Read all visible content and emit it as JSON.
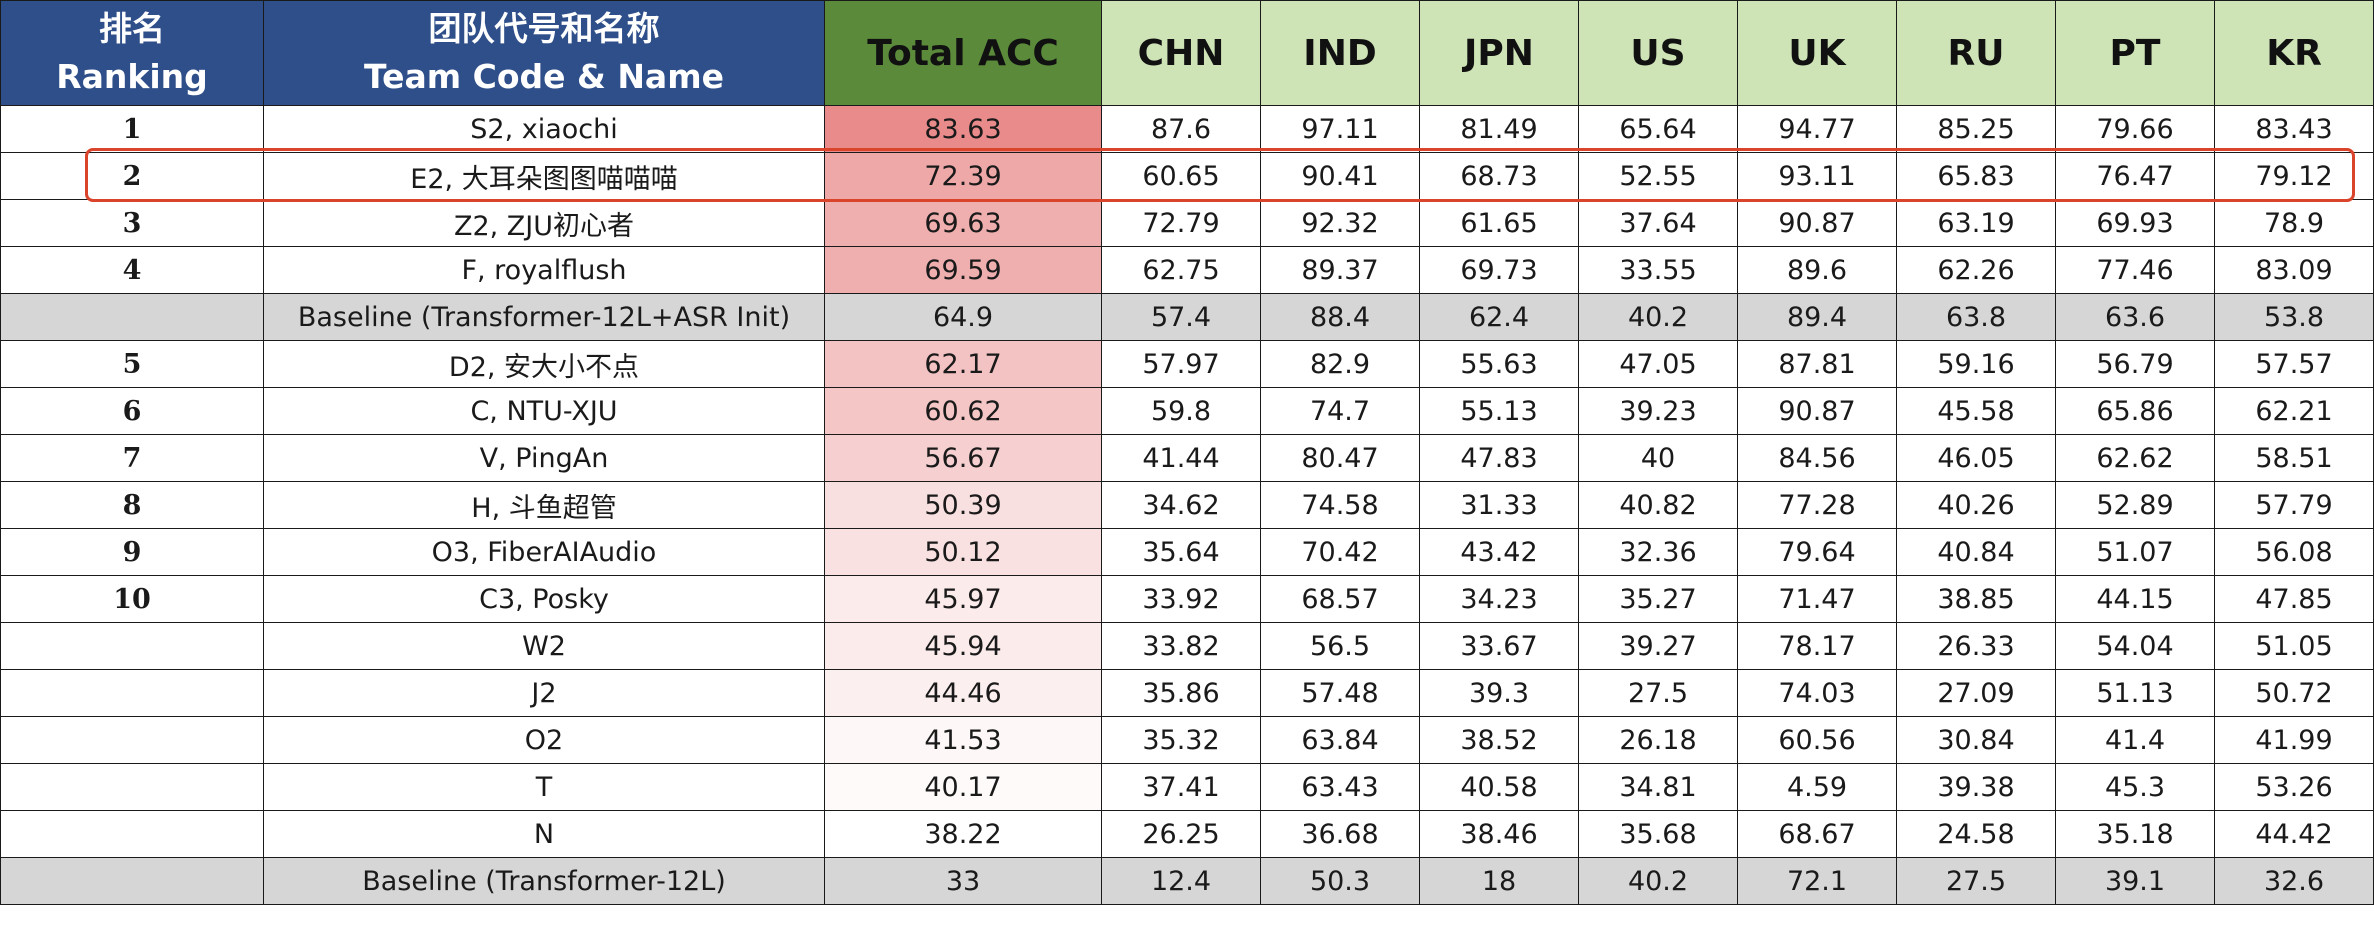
{
  "header": {
    "ranking_zh": "排名",
    "ranking_en": "Ranking",
    "team_zh": "团队代号和名称",
    "team_en": "Team Code & Name",
    "total": "Total ACC",
    "countries": [
      "CHN",
      "IND",
      "JPN",
      "US",
      "UK",
      "RU",
      "PT",
      "KR"
    ]
  },
  "colors": {
    "header_blue": "#2f4f8a",
    "header_total_green": "#5a8a3a",
    "header_country_green": "#cfe4b6",
    "baseline_gray": "#d6d6d6",
    "total_heat_high": "#e98b8b",
    "total_heat_low": "#ffffff",
    "highlight_border": "#d9442a"
  },
  "highlight": {
    "row_index": 1,
    "team": "E2, 大耳朵图图喵喵喵"
  },
  "chart_data": {
    "type": "table",
    "columns": [
      "排名 Ranking",
      "团队代号和名称 Team Code & Name",
      "Total ACC",
      "CHN",
      "IND",
      "JPN",
      "US",
      "UK",
      "RU",
      "PT",
      "KR"
    ],
    "rows": [
      {
        "rank": "1",
        "team": "S2, xiaochi",
        "total": "83.63",
        "scores": [
          "87.6",
          "97.11",
          "81.49",
          "65.64",
          "94.77",
          "85.25",
          "79.66",
          "83.43"
        ],
        "baseline": false
      },
      {
        "rank": "2",
        "team": "E2, 大耳朵图图喵喵喵",
        "total": "72.39",
        "scores": [
          "60.65",
          "90.41",
          "68.73",
          "52.55",
          "93.11",
          "65.83",
          "76.47",
          "79.12"
        ],
        "baseline": false
      },
      {
        "rank": "3",
        "team": "Z2, ZJU初心者",
        "total": "69.63",
        "scores": [
          "72.79",
          "92.32",
          "61.65",
          "37.64",
          "90.87",
          "63.19",
          "69.93",
          "78.9"
        ],
        "baseline": false
      },
      {
        "rank": "4",
        "team": "F, royalflush",
        "total": "69.59",
        "scores": [
          "62.75",
          "89.37",
          "69.73",
          "33.55",
          "89.6",
          "62.26",
          "77.46",
          "83.09"
        ],
        "baseline": false
      },
      {
        "rank": "",
        "team": "Baseline (Transformer-12L+ASR Init)",
        "total": "64.9",
        "scores": [
          "57.4",
          "88.4",
          "62.4",
          "40.2",
          "89.4",
          "63.8",
          "63.6",
          "53.8"
        ],
        "baseline": true
      },
      {
        "rank": "5",
        "team": "D2, 安大小不点",
        "total": "62.17",
        "scores": [
          "57.97",
          "82.9",
          "55.63",
          "47.05",
          "87.81",
          "59.16",
          "56.79",
          "57.57"
        ],
        "baseline": false
      },
      {
        "rank": "6",
        "team": "C, NTU-XJU",
        "total": "60.62",
        "scores": [
          "59.8",
          "74.7",
          "55.13",
          "39.23",
          "90.87",
          "45.58",
          "65.86",
          "62.21"
        ],
        "baseline": false
      },
      {
        "rank": "7",
        "team": "V, PingAn",
        "total": "56.67",
        "scores": [
          "41.44",
          "80.47",
          "47.83",
          "40",
          "84.56",
          "46.05",
          "62.62",
          "58.51"
        ],
        "baseline": false
      },
      {
        "rank": "8",
        "team": "H, 斗鱼超管",
        "total": "50.39",
        "scores": [
          "34.62",
          "74.58",
          "31.33",
          "40.82",
          "77.28",
          "40.26",
          "52.89",
          "57.79"
        ],
        "baseline": false
      },
      {
        "rank": "9",
        "team": "O3, FiberAIAudio",
        "total": "50.12",
        "scores": [
          "35.64",
          "70.42",
          "43.42",
          "32.36",
          "79.64",
          "40.84",
          "51.07",
          "56.08"
        ],
        "baseline": false
      },
      {
        "rank": "10",
        "team": "C3, Posky",
        "total": "45.97",
        "scores": [
          "33.92",
          "68.57",
          "34.23",
          "35.27",
          "71.47",
          "38.85",
          "44.15",
          "47.85"
        ],
        "baseline": false
      },
      {
        "rank": "",
        "team": "W2",
        "total": "45.94",
        "scores": [
          "33.82",
          "56.5",
          "33.67",
          "39.27",
          "78.17",
          "26.33",
          "54.04",
          "51.05"
        ],
        "baseline": false
      },
      {
        "rank": "",
        "team": "J2",
        "total": "44.46",
        "scores": [
          "35.86",
          "57.48",
          "39.3",
          "27.5",
          "74.03",
          "27.09",
          "51.13",
          "50.72"
        ],
        "baseline": false
      },
      {
        "rank": "",
        "team": "O2",
        "total": "41.53",
        "scores": [
          "35.32",
          "63.84",
          "38.52",
          "26.18",
          "60.56",
          "30.84",
          "41.4",
          "41.99"
        ],
        "baseline": false
      },
      {
        "rank": "",
        "team": "T",
        "total": "40.17",
        "scores": [
          "37.41",
          "63.43",
          "40.58",
          "34.81",
          "4.59",
          "39.38",
          "45.3",
          "53.26"
        ],
        "baseline": false
      },
      {
        "rank": "",
        "team": "N",
        "total": "38.22",
        "scores": [
          "26.25",
          "36.68",
          "38.46",
          "35.68",
          "68.67",
          "24.58",
          "35.18",
          "44.42"
        ],
        "baseline": false
      },
      {
        "rank": "",
        "team": "Baseline (Transformer-12L)",
        "total": "33",
        "scores": [
          "12.4",
          "50.3",
          "18",
          "40.2",
          "72.1",
          "27.5",
          "39.1",
          "32.6"
        ],
        "baseline": true
      }
    ]
  }
}
